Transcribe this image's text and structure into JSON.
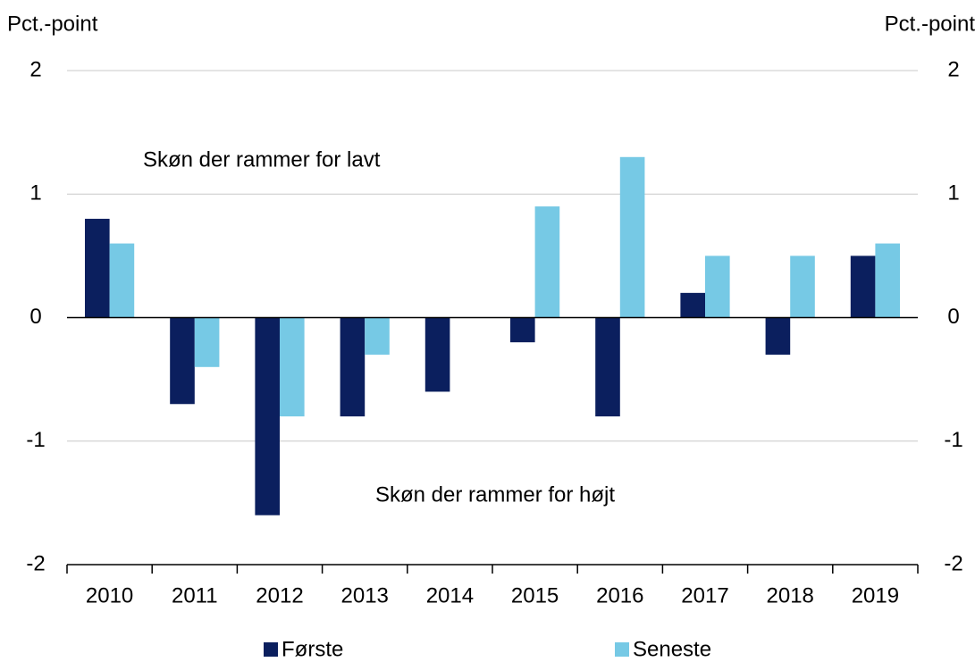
{
  "chart_data": {
    "type": "bar",
    "y_label": "Pct.-point",
    "y2_label": "Pct.-point",
    "annotations": [
      "Skøn der rammer for lavt",
      "Skøn der rammer for højt"
    ],
    "categories": [
      "2010",
      "2011",
      "2012",
      "2013",
      "2014",
      "2015",
      "2016",
      "2017",
      "2018",
      "2019"
    ],
    "series": [
      {
        "name": "Første",
        "color": "#0b1f5e",
        "values": [
          0.8,
          -0.7,
          -1.6,
          -0.8,
          -0.6,
          -0.2,
          -0.8,
          0.2,
          -0.3,
          0.5
        ]
      },
      {
        "name": "Seneste",
        "color": "#76c9e5",
        "values": [
          0.6,
          -0.4,
          -0.8,
          -0.3,
          0,
          0.9,
          1.3,
          0.5,
          0.5,
          0.6
        ]
      }
    ],
    "ylim": [
      -2,
      2
    ],
    "yticks": [
      -2,
      -1,
      0,
      1,
      2
    ],
    "y2lim": [
      -2,
      2
    ],
    "y2ticks": [
      -2,
      -1,
      0,
      1,
      2
    ],
    "grid": true
  }
}
